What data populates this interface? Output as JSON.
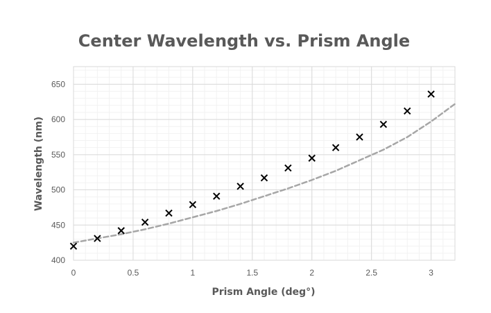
{
  "chart_data": {
    "type": "scatter",
    "title": "Center Wavelength vs. Prism Angle",
    "xlabel": "Prism Angle (deg°)",
    "ylabel": "Wavelength (nm)",
    "xlim": [
      0,
      3.2
    ],
    "ylim": [
      400,
      675
    ],
    "x_ticks": [
      0,
      0.5,
      1,
      1.5,
      2,
      2.5,
      3
    ],
    "x_tick_labels": [
      "0",
      "0.5",
      "1",
      "1.5",
      "2",
      "2.5",
      "3"
    ],
    "y_ticks": [
      400,
      450,
      500,
      550,
      600,
      650
    ],
    "y_tick_labels": [
      "400",
      "450",
      "500",
      "550",
      "600",
      "650"
    ],
    "grid": true,
    "series": [
      {
        "marker": "x",
        "color": "#000000",
        "x": [
          0,
          0.2,
          0.4,
          0.6,
          0.8,
          1.0,
          1.2,
          1.4,
          1.6,
          1.8,
          2.0,
          2.2,
          2.4,
          2.6,
          2.8,
          3.0
        ],
        "y": [
          420,
          431,
          442,
          454,
          467,
          479,
          491,
          505,
          517,
          531,
          545,
          560,
          575,
          593,
          612,
          636
        ]
      },
      {
        "line": "dashed",
        "color": "#a6a6a6",
        "x": [
          0,
          0.2,
          0.4,
          0.6,
          0.8,
          1.0,
          1.2,
          1.4,
          1.6,
          1.8,
          2.0,
          2.2,
          2.4,
          2.6,
          2.8,
          3.0,
          3.2
        ],
        "y": [
          425,
          431,
          437,
          444,
          452,
          461,
          470,
          480,
          491,
          502,
          514,
          527,
          542,
          557,
          575,
          597,
          622
        ]
      }
    ]
  }
}
